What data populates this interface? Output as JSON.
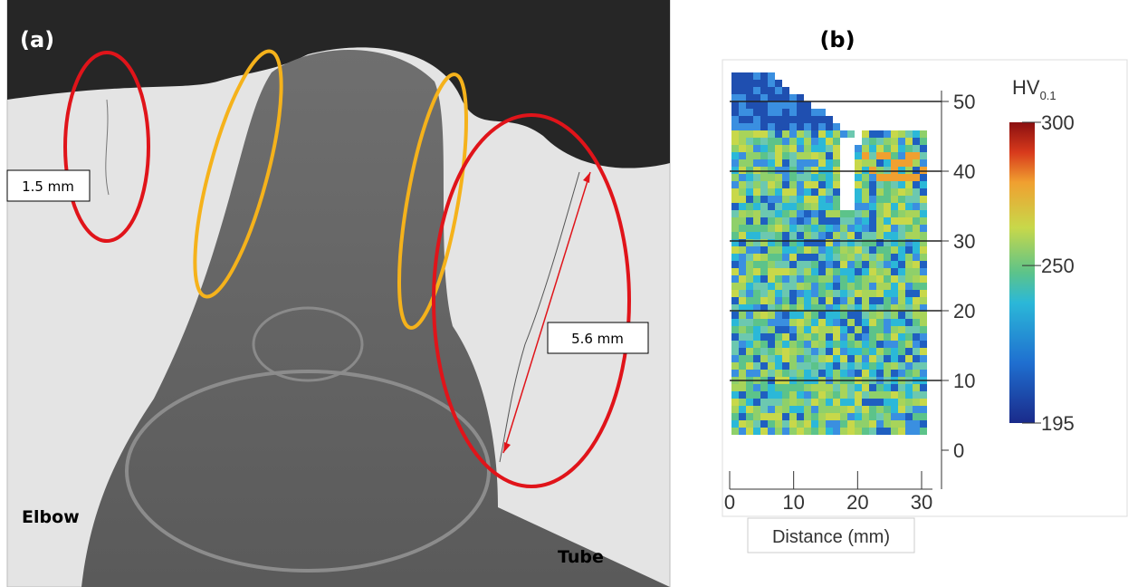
{
  "panel_a": {
    "label": "(a)",
    "crack_left": "1.5 mm",
    "crack_right": "5.6 mm",
    "left_side": "Elbow",
    "right_side": "Tube"
  },
  "panel_b": {
    "label": "(b)",
    "xlabel": "Distance (mm)",
    "xticks": [
      0,
      10,
      20,
      30
    ],
    "yticks": [
      0,
      10,
      20,
      30,
      40,
      50
    ],
    "colorbar": {
      "label": "HV",
      "subscript": "0.1",
      "ticks": [
        300,
        250,
        195
      ]
    }
  }
}
